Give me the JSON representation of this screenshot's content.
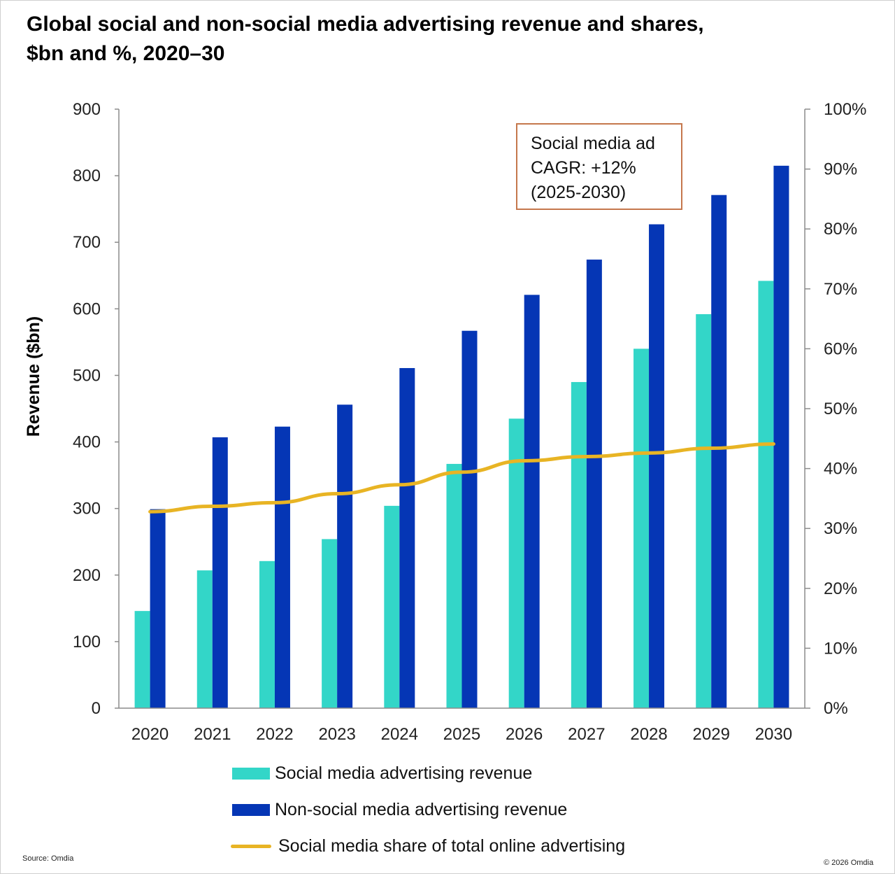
{
  "title": {
    "line1": "Global social and non-social media advertising revenue and shares,",
    "line2": "$bn and %, 2020–30"
  },
  "annotation": {
    "lines": [
      "Social media ad",
      "CAGR: +12%",
      "(2025-2030)"
    ]
  },
  "legend": {
    "social_label": "Social media advertising revenue",
    "nonsocial_label": "Non-social media advertising revenue",
    "share_label": "Social media share of total online advertising"
  },
  "source": "Source: Omdia",
  "copyright": "© 2026 Omdia",
  "colors": {
    "social": "#33d6c8",
    "nonsocial": "#0536b5",
    "share": "#e8b424",
    "axis": "#8c8c8c",
    "annotation_border": "#c5774c"
  },
  "chart_data": {
    "type": "bar",
    "categories": [
      "2020",
      "2021",
      "2022",
      "2023",
      "2024",
      "2025",
      "2026",
      "2027",
      "2028",
      "2029",
      "2030"
    ],
    "series": [
      {
        "name": "Social media advertising revenue",
        "type": "bar",
        "axis": "left",
        "values": [
          146,
          207,
          221,
          254,
          304,
          367,
          435,
          490,
          540,
          592,
          642
        ]
      },
      {
        "name": "Non-social media advertising revenue",
        "type": "bar",
        "axis": "left",
        "values": [
          299,
          407,
          423,
          456,
          511,
          567,
          621,
          674,
          727,
          771,
          815
        ]
      },
      {
        "name": "Social media share of total online advertising",
        "type": "line",
        "axis": "right",
        "values": [
          32.8,
          33.7,
          34.3,
          35.8,
          37.3,
          39.4,
          41.3,
          42.0,
          42.6,
          43.4,
          44.1
        ]
      }
    ],
    "ylabel": "Revenue ($bn)",
    "ylim": [
      0,
      900
    ],
    "yticks": [
      "0",
      "100",
      "200",
      "300",
      "400",
      "500",
      "600",
      "700",
      "800",
      "900"
    ],
    "y2lim": [
      0,
      100
    ],
    "y2ticks": [
      "0%",
      "10%",
      "20%",
      "30%",
      "40%",
      "50%",
      "60%",
      "70%",
      "80%",
      "90%",
      "100%"
    ],
    "grid": false,
    "legend_position": "bottom"
  }
}
